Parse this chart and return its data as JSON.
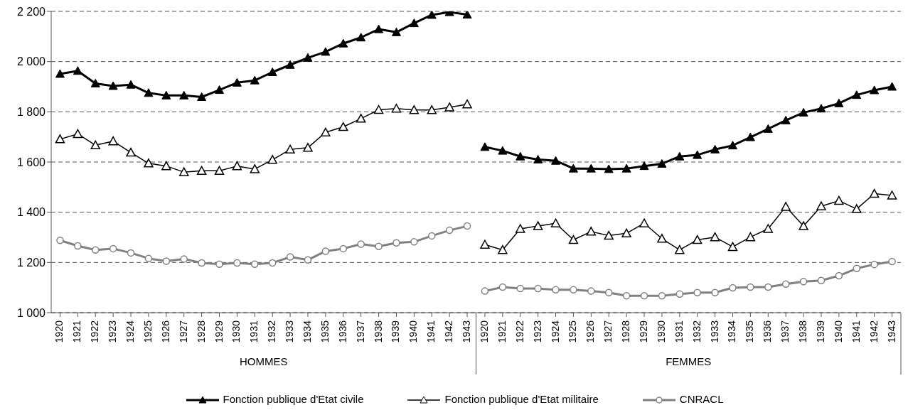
{
  "chart_data": {
    "type": "line",
    "categories": [
      "1920",
      "1921",
      "1922",
      "1923",
      "1924",
      "1925",
      "1926",
      "1927",
      "1928",
      "1929",
      "1930",
      "1931",
      "1932",
      "1933",
      "1934",
      "1935",
      "1936",
      "1937",
      "1938",
      "1939",
      "1940",
      "1941",
      "1942",
      "1943",
      "1920",
      "1921",
      "1922",
      "1923",
      "1924",
      "1925",
      "1926",
      "1927",
      "1928",
      "1929",
      "1930",
      "1931",
      "1932",
      "1933",
      "1934",
      "1935",
      "1936",
      "1937",
      "1938",
      "1939",
      "1940",
      "1941",
      "1942",
      "1943"
    ],
    "series": [
      {
        "name": "Fonction publique d'Etat civile",
        "color": "#000000",
        "marker": "triangle",
        "values": [
          1951,
          1963,
          1913,
          1903,
          1908,
          1875,
          1865,
          1865,
          1859,
          1887,
          1916,
          1925,
          1958,
          1987,
          2015,
          2039,
          2072,
          2096,
          2129,
          2117,
          2153,
          2186,
          2197,
          2187,
          null,
          null,
          null,
          null,
          null,
          null,
          null,
          null,
          null,
          null,
          null,
          null,
          null,
          null,
          null,
          null,
          null,
          null,
          null,
          null,
          null,
          null,
          null,
          null
        ]
      },
      {
        "name": "Fonction publique d'Etat militaire",
        "color": "#000000",
        "marker": "triangle",
        "values": [
          1691,
          1712,
          1667,
          1683,
          1638,
          1595,
          1584,
          1560,
          1565,
          1565,
          1584,
          1572,
          1609,
          1650,
          1657,
          1718,
          1740,
          1773,
          1808,
          1813,
          1807,
          1807,
          1818,
          1830,
          null,
          null,
          null,
          null,
          null,
          null,
          null,
          null,
          null,
          null,
          null,
          null,
          null,
          null,
          null,
          null,
          null,
          null,
          null,
          null,
          null,
          null,
          null,
          null
        ]
      },
      {
        "name": "CNRACL",
        "color": "#808080",
        "marker": "circle",
        "values": [
          1288,
          1266,
          1250,
          1255,
          1238,
          1216,
          1205,
          1214,
          1198,
          1193,
          1198,
          1193,
          1198,
          1222,
          1210,
          1245,
          1255,
          1273,
          1264,
          1278,
          1282,
          1306,
          1328,
          1345,
          null,
          null,
          null,
          null,
          null,
          null,
          null,
          null,
          null,
          null,
          null,
          null,
          null,
          null,
          null,
          null,
          null,
          null,
          null,
          null,
          null,
          null,
          null,
          null
        ]
      },
      {
        "color": "#000000",
        "marker": "triangle",
        "values": [
          null,
          null,
          null,
          null,
          null,
          null,
          null,
          null,
          null,
          null,
          null,
          null,
          null,
          null,
          null,
          null,
          null,
          null,
          null,
          null,
          null,
          null,
          null,
          null,
          1660,
          1645,
          1622,
          1610,
          1605,
          1574,
          1574,
          1572,
          1574,
          1584,
          1593,
          1622,
          1628,
          1650,
          1666,
          1699,
          1732,
          1766,
          1797,
          1813,
          1834,
          1867,
          1886,
          1900
        ]
      },
      {
        "color": "#000000",
        "marker": "triangle",
        "values": [
          null,
          null,
          null,
          null,
          null,
          null,
          null,
          null,
          null,
          null,
          null,
          null,
          null,
          null,
          null,
          null,
          null,
          null,
          null,
          null,
          null,
          null,
          null,
          null,
          1271,
          1250,
          1334,
          1345,
          1356,
          1290,
          1323,
          1307,
          1316,
          1356,
          1295,
          1250,
          1290,
          1301,
          1262,
          1301,
          1334,
          1422,
          1345,
          1424,
          1446,
          1413,
          1474,
          1467
        ]
      },
      {
        "color": "#808080",
        "marker": "circle",
        "values": [
          null,
          null,
          null,
          null,
          null,
          null,
          null,
          null,
          null,
          null,
          null,
          null,
          null,
          null,
          null,
          null,
          null,
          null,
          null,
          null,
          null,
          null,
          null,
          null,
          1086,
          1102,
          1096,
          1096,
          1091,
          1091,
          1086,
          1080,
          1067,
          1067,
          1067,
          1074,
          1080,
          1080,
          1099,
          1102,
          1102,
          1114,
          1124,
          1128,
          1147,
          1176,
          1192,
          1204
        ]
      }
    ],
    "ylim": [
      1000,
      2200
    ],
    "yticks": [
      {
        "value": 1000,
        "label": "1 000"
      },
      {
        "value": 1200,
        "label": "1 200"
      },
      {
        "value": 1400,
        "label": "1 400"
      },
      {
        "value": 1600,
        "label": "1 600"
      },
      {
        "value": 1800,
        "label": "1 800"
      },
      {
        "value": 2000,
        "label": "2 000"
      },
      {
        "value": 2200,
        "label": "2 200"
      }
    ],
    "grid": "y",
    "legend": "bottom",
    "line_style": "solid",
    "annotations": [
      "HOMMES",
      "FEMMES"
    ]
  }
}
